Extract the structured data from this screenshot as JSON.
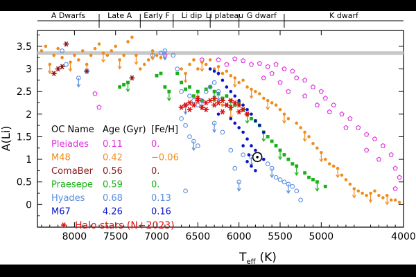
{
  "chart_data": {
    "type": "scatter",
    "title": "",
    "xlabel": "T",
    "xlabel_sub": "eff",
    "xlabel_unit": "(K)",
    "ylabel": "A(Li)",
    "x_reversed": true,
    "xlim": [
      8450,
      4000
    ],
    "ylim": [
      -0.5,
      3.85
    ],
    "x_ticks": [
      8000,
      7500,
      7000,
      6500,
      6000,
      5500,
      5000,
      4000
    ],
    "x_tick_labels": [
      "8000",
      "7500",
      "7000",
      "6500",
      "6000",
      "5500",
      "5000",
      "4000"
    ],
    "y_ticks": [
      0,
      0.5,
      1,
      1.5,
      2,
      2.5,
      3,
      3.5
    ],
    "y_tick_labels": [
      "0",
      "0.5",
      "1",
      "1.5",
      "2",
      "2.5",
      "3",
      "3.5"
    ],
    "grid": false,
    "reference_line": {
      "y": 3.35,
      "color": "#c8c8c8"
    },
    "regions": [
      {
        "label": "A Dwarfs",
        "from": 8450,
        "to": 7700
      },
      {
        "label": "Late A",
        "from": 7700,
        "to": 7200
      },
      {
        "label": "Early F",
        "from": 7200,
        "to": 6800
      },
      {
        "label": "Li dip",
        "from": 6800,
        "to": 6350
      },
      {
        "label": "Li plateau",
        "from": 6350,
        "to": 6000
      },
      {
        "label": "G dwarf",
        "from": 6000,
        "to": 5450
      },
      {
        "label": "K dwarf",
        "from": 5450,
        "to": 4000
      }
    ],
    "legend": {
      "placement": "lower-left",
      "headers": [
        "OC Name",
        "Age (Gyr)",
        "[Fe/H]"
      ],
      "rows": [
        {
          "name": "Pleiades",
          "age": "0.11",
          "feh": "0.",
          "color": "#e030e0"
        },
        {
          "name": "M48",
          "age": "0.42",
          "feh": "−0.06",
          "color": "#f08c1e"
        },
        {
          "name": "ComaBer",
          "age": "0.56",
          "feh": "0.",
          "color": "#8b1a1a"
        },
        {
          "name": "Praesepe",
          "age": "0.59",
          "feh": "0.",
          "color": "#18b018"
        },
        {
          "name": "Hyades",
          "age": "0.68",
          "feh": "0.13",
          "color": "#5a8ede"
        },
        {
          "name": "M67",
          "age": "4.26",
          "feh": "0.16",
          "color": "#0a14c8"
        }
      ],
      "halo_label": "Halo stars (N+2023)",
      "halo_color": "#e01010"
    },
    "sun": {
      "x": 5777,
      "y": 1.05,
      "label": "Sun"
    },
    "series": [
      {
        "name": "Pleiades",
        "marker": "open-pentagon",
        "color": "#e030e0",
        "points": [
          [
            6250,
            3.2
          ],
          [
            6050,
            3.22
          ],
          [
            5950,
            3.18
          ],
          [
            5850,
            3.1
          ],
          [
            5750,
            3.12
          ],
          [
            5650,
            3.05
          ],
          [
            5550,
            3.1
          ],
          [
            5450,
            3.0
          ],
          [
            5350,
            2.95
          ],
          [
            5300,
            2.8
          ],
          [
            5200,
            2.75
          ],
          [
            5100,
            2.6
          ],
          [
            5000,
            2.5
          ],
          [
            4950,
            2.35
          ],
          [
            4850,
            2.2
          ],
          [
            4750,
            2.0
          ],
          [
            4650,
            1.9
          ],
          [
            4550,
            1.7
          ],
          [
            4450,
            1.55
          ],
          [
            4350,
            1.45
          ],
          [
            4250,
            1.3
          ],
          [
            4150,
            1.1
          ],
          [
            4100,
            0.8
          ],
          [
            4050,
            0.6
          ],
          [
            4100,
            0.35
          ],
          [
            5500,
            2.7
          ],
          [
            5600,
            2.9
          ],
          [
            6150,
            3.1
          ],
          [
            5400,
            2.5
          ],
          [
            5200,
            2.4
          ],
          [
            5050,
            2.2
          ],
          [
            4900,
            2.05
          ],
          [
            4700,
            1.7
          ],
          [
            4450,
            1.2
          ],
          [
            7750,
            2.45
          ],
          [
            7700,
            2.15
          ],
          [
            6900,
            3.3
          ],
          [
            6450,
            3.2
          ],
          [
            5700,
            2.8
          ],
          [
            4300,
            1.0
          ]
        ]
      },
      {
        "name": "M48",
        "marker": "filled-dot",
        "color": "#f08c1e",
        "points": [
          [
            8400,
            3.4
          ],
          [
            8350,
            3.5
          ],
          [
            8300,
            3.1
          ],
          [
            8250,
            3.3
          ],
          [
            8200,
            3.45
          ],
          [
            8150,
            3.25
          ],
          [
            8050,
            3.15
          ],
          [
            8000,
            3.3
          ],
          [
            7950,
            3.2
          ],
          [
            7900,
            3.4
          ],
          [
            7850,
            3.1
          ],
          [
            7800,
            3.3
          ],
          [
            7750,
            3.45
          ],
          [
            7700,
            3.55
          ],
          [
            7650,
            3.35
          ],
          [
            7600,
            3.3
          ],
          [
            7550,
            3.4
          ],
          [
            7500,
            3.5
          ],
          [
            7450,
            3.2
          ],
          [
            7400,
            3.3
          ],
          [
            7350,
            3.6
          ],
          [
            7300,
            3.7
          ],
          [
            7250,
            3.3
          ],
          [
            7200,
            3.0
          ],
          [
            7150,
            3.1
          ],
          [
            7100,
            3.2
          ],
          [
            7050,
            3.4
          ],
          [
            7000,
            3.3
          ],
          [
            6950,
            3.25
          ],
          [
            6700,
            3.0
          ],
          [
            6650,
            2.9
          ],
          [
            6600,
            3.1
          ],
          [
            6550,
            3.2
          ],
          [
            6500,
            3.0
          ],
          [
            6450,
            3.15
          ],
          [
            6400,
            3.1
          ],
          [
            6350,
            3.2
          ],
          [
            6300,
            3.0
          ],
          [
            6250,
            3.05
          ],
          [
            6200,
            2.9
          ],
          [
            6150,
            2.95
          ],
          [
            6100,
            2.85
          ],
          [
            6050,
            2.8
          ],
          [
            6000,
            2.7
          ],
          [
            5950,
            2.75
          ],
          [
            5900,
            2.6
          ],
          [
            5850,
            2.55
          ],
          [
            5800,
            2.5
          ],
          [
            5750,
            2.45
          ],
          [
            5700,
            2.35
          ],
          [
            5650,
            2.3
          ],
          [
            5600,
            2.25
          ],
          [
            5550,
            2.2
          ],
          [
            5500,
            2.1
          ],
          [
            5450,
            2.0
          ],
          [
            5400,
            1.9
          ],
          [
            5300,
            1.8
          ],
          [
            5250,
            1.7
          ],
          [
            5200,
            1.6
          ],
          [
            5150,
            1.5
          ],
          [
            5100,
            1.35
          ],
          [
            5050,
            1.25
          ],
          [
            5000,
            1.15
          ],
          [
            4950,
            1.0
          ],
          [
            4900,
            0.9
          ],
          [
            4850,
            0.85
          ],
          [
            4800,
            0.8
          ],
          [
            4750,
            0.65
          ],
          [
            4700,
            0.55
          ],
          [
            4650,
            0.45
          ],
          [
            4600,
            0.35
          ],
          [
            4550,
            0.3
          ],
          [
            4500,
            0.25
          ],
          [
            4450,
            0.2
          ],
          [
            4400,
            0.25
          ],
          [
            4350,
            0.3
          ],
          [
            4300,
            0.2
          ],
          [
            4250,
            0.15
          ],
          [
            4200,
            0.2
          ],
          [
            4150,
            0.1
          ],
          [
            4100,
            0.1
          ],
          [
            4050,
            0.05
          ],
          [
            6100,
            2.1
          ],
          [
            6200,
            2.2
          ],
          [
            6300,
            2.3
          ]
        ]
      },
      {
        "name": "ComaBer",
        "marker": "asterisk",
        "color": "#8b1a1a",
        "points": [
          [
            8250,
            2.9
          ],
          [
            8200,
            3.0
          ],
          [
            8150,
            3.05
          ],
          [
            8100,
            3.55
          ],
          [
            7850,
            2.95
          ],
          [
            7300,
            2.8
          ]
        ]
      },
      {
        "name": "Praesepe",
        "marker": "filled-square",
        "color": "#18b018",
        "points": [
          [
            7450,
            2.6
          ],
          [
            7400,
            2.65
          ],
          [
            7350,
            2.7
          ],
          [
            7000,
            2.85
          ],
          [
            6950,
            2.9
          ],
          [
            6900,
            2.6
          ],
          [
            6850,
            2.5
          ],
          [
            6650,
            2.55
          ],
          [
            6600,
            2.6
          ],
          [
            6550,
            2.4
          ],
          [
            6500,
            2.5
          ],
          [
            6450,
            2.3
          ],
          [
            6400,
            2.55
          ],
          [
            6350,
            2.6
          ],
          [
            6300,
            2.5
          ],
          [
            6250,
            2.45
          ],
          [
            6200,
            2.35
          ],
          [
            6150,
            2.4
          ],
          [
            6100,
            2.3
          ],
          [
            6050,
            2.2
          ],
          [
            6000,
            2.25
          ],
          [
            5950,
            2.1
          ],
          [
            5900,
            2.0
          ],
          [
            5850,
            1.9
          ],
          [
            5800,
            1.85
          ],
          [
            5750,
            1.75
          ],
          [
            5700,
            1.6
          ],
          [
            5650,
            1.5
          ],
          [
            5600,
            1.4
          ],
          [
            5550,
            1.3
          ],
          [
            5500,
            1.2
          ],
          [
            5450,
            1.1
          ],
          [
            5400,
            1.0
          ],
          [
            5350,
            0.9
          ],
          [
            5300,
            0.85
          ],
          [
            5200,
            0.7
          ],
          [
            5150,
            0.6
          ],
          [
            5100,
            0.55
          ],
          [
            5050,
            0.5
          ],
          [
            4950,
            0.4
          ],
          [
            6700,
            2.7
          ],
          [
            6750,
            2.9
          ]
        ]
      },
      {
        "name": "Hyades",
        "marker": "open-circle",
        "color": "#5a8ede",
        "points": [
          [
            8150,
            3.4
          ],
          [
            8100,
            3.1
          ],
          [
            7950,
            2.8
          ],
          [
            7850,
            2.95
          ],
          [
            7050,
            3.3
          ],
          [
            6950,
            3.35
          ],
          [
            6900,
            3.4
          ],
          [
            6800,
            3.3
          ],
          [
            6750,
            3.0
          ],
          [
            6700,
            2.5
          ],
          [
            6650,
            2.2
          ],
          [
            6600,
            2.4
          ],
          [
            6550,
            2.3
          ],
          [
            6500,
            2.2
          ],
          [
            6450,
            2.3
          ],
          [
            6400,
            2.5
          ],
          [
            6350,
            2.6
          ],
          [
            6300,
            2.7
          ],
          [
            6250,
            2.5
          ],
          [
            6700,
            1.9
          ],
          [
            6650,
            1.75
          ],
          [
            6600,
            1.5
          ],
          [
            6550,
            1.4
          ],
          [
            6500,
            1.3
          ],
          [
            6650,
            0.3
          ],
          [
            5950,
            1.1
          ],
          [
            5850,
            1.05
          ],
          [
            5800,
            1.0
          ],
          [
            5750,
            1.1
          ],
          [
            5650,
            0.9
          ],
          [
            5600,
            0.8
          ],
          [
            5550,
            0.6
          ],
          [
            5500,
            0.55
          ],
          [
            5450,
            0.5
          ],
          [
            5400,
            0.45
          ],
          [
            5350,
            0.4
          ],
          [
            5300,
            0.3
          ],
          [
            5250,
            0.1
          ],
          [
            6000,
            0.5
          ],
          [
            6050,
            0.8
          ],
          [
            6100,
            1.2
          ],
          [
            6200,
            1.6
          ],
          [
            6300,
            1.8
          ]
        ]
      },
      {
        "name": "M67",
        "marker": "filled-dot",
        "color": "#0a14c8",
        "points": [
          [
            6350,
            3.0
          ],
          [
            6300,
            2.95
          ],
          [
            6250,
            2.9
          ],
          [
            6200,
            2.75
          ],
          [
            6150,
            2.6
          ],
          [
            6100,
            2.5
          ],
          [
            6050,
            2.4
          ],
          [
            6000,
            2.3
          ],
          [
            5950,
            2.2
          ],
          [
            5900,
            2.1
          ],
          [
            5850,
            2.0
          ],
          [
            5800,
            1.85
          ],
          [
            5750,
            1.75
          ],
          [
            5700,
            1.6
          ],
          [
            6050,
            1.8
          ],
          [
            6000,
            1.7
          ],
          [
            5950,
            1.6
          ],
          [
            5900,
            1.45
          ],
          [
            5850,
            1.3
          ],
          [
            5800,
            1.2
          ],
          [
            5750,
            1.1
          ],
          [
            5700,
            1.0
          ],
          [
            5900,
            0.95
          ],
          [
            5850,
            0.85
          ],
          [
            5800,
            0.75
          ],
          [
            6150,
            2.2
          ],
          [
            6250,
            2.0
          ],
          [
            6100,
            1.9
          ],
          [
            5950,
            1.3
          ],
          [
            5880,
            1.1
          ]
        ]
      },
      {
        "name": "Halo stars (N+2023)",
        "marker": "asterisk",
        "color": "#e01010",
        "points": [
          [
            6700,
            2.15
          ],
          [
            6650,
            2.2
          ],
          [
            6600,
            2.25
          ],
          [
            6550,
            2.2
          ],
          [
            6500,
            2.3
          ],
          [
            6450,
            2.15
          ],
          [
            6400,
            2.25
          ],
          [
            6350,
            2.3
          ],
          [
            6300,
            2.2
          ],
          [
            6250,
            2.25
          ],
          [
            6200,
            2.3
          ],
          [
            6150,
            2.2
          ],
          [
            6100,
            2.15
          ],
          [
            6050,
            2.25
          ],
          [
            6000,
            2.2
          ],
          [
            5950,
            2.1
          ],
          [
            5900,
            2.0
          ],
          [
            6600,
            2.1
          ],
          [
            6500,
            2.35
          ],
          [
            6400,
            2.1
          ],
          [
            6300,
            2.35
          ],
          [
            6200,
            2.05
          ],
          [
            6100,
            2.3
          ],
          [
            6000,
            2.05
          ]
        ]
      }
    ],
    "upper_limit_series": [
      "M48",
      "Praesepe",
      "Hyades"
    ]
  }
}
